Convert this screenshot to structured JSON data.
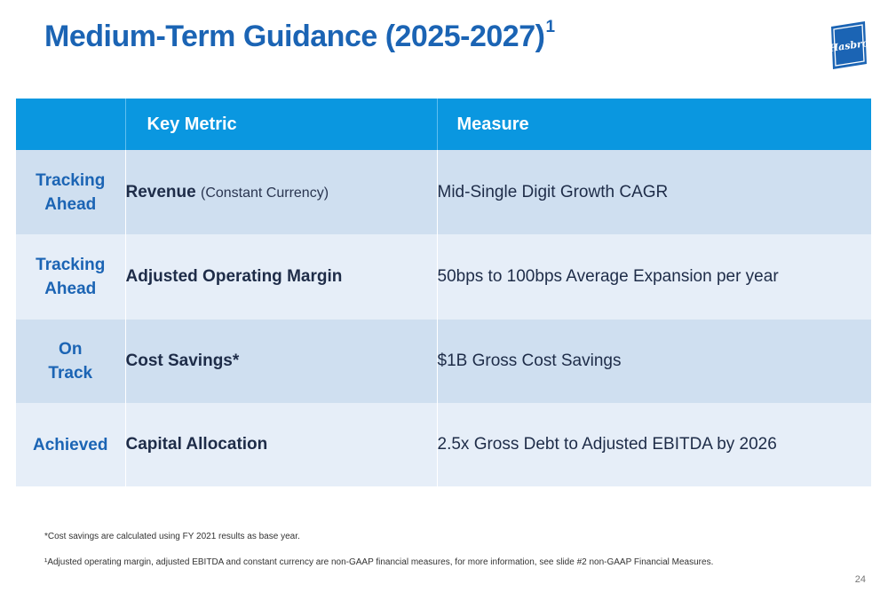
{
  "title": "Medium-Term Guidance (2025-2027)",
  "title_superscript": "1",
  "logo": {
    "text": "Hasbro",
    "color": "#1b64b4"
  },
  "table": {
    "headers": [
      "",
      "Key Metric",
      "Measure"
    ],
    "rows": [
      {
        "status_line1": "Tracking",
        "status_line2": "Ahead",
        "metric": "Revenue",
        "metric_note": "(Constant Currency)",
        "measure": "Mid-Single Digit Growth CAGR"
      },
      {
        "status_line1": "Tracking",
        "status_line2": "Ahead",
        "metric": "Adjusted Operating Margin",
        "metric_note": "",
        "measure": "50bps to 100bps Average Expansion per year"
      },
      {
        "status_line1": "On",
        "status_line2": "Track",
        "metric": "Cost Savings*",
        "metric_note": "",
        "measure": "$1B Gross Cost Savings"
      },
      {
        "status_line1": "Achieved",
        "status_line2": "",
        "metric": "Capital Allocation",
        "metric_note": "",
        "measure": "2.5x Gross Debt to Adjusted EBITDA by 2026"
      }
    ]
  },
  "footnotes": [
    "*Cost savings are calculated using FY 2021 results as base year.",
    "¹Adjusted operating margin, adjusted EBITDA and constant currency are non-GAAP financial measures, for more information, see slide #2 non-GAAP Financial Measures."
  ],
  "page_number": "24",
  "colors": {
    "header": "#0a97e0",
    "title": "#1b64b4",
    "row_dark": "#cfdff0",
    "row_light": "#e6eef8"
  }
}
